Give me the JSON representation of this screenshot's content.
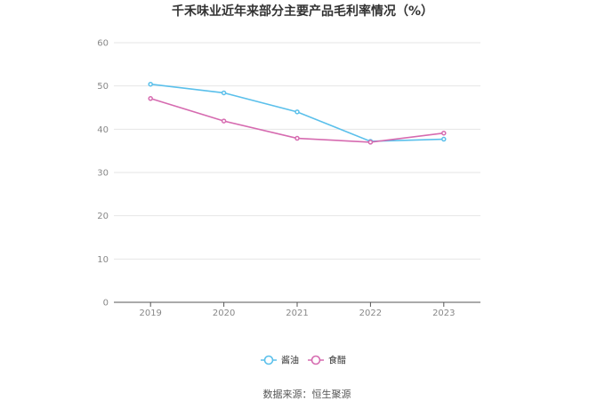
{
  "chart_data": {
    "type": "line",
    "title": "千禾味业近年来部分主要产品毛利率情况（%）",
    "categories": [
      "2019",
      "2020",
      "2021",
      "2022",
      "2023"
    ],
    "y_ticks": [
      "0",
      "10",
      "20",
      "30",
      "40",
      "50",
      "60"
    ],
    "ylim": [
      0,
      60
    ],
    "grid": true,
    "legend_position": "bottom",
    "series": [
      {
        "name": "酱油",
        "color": "#5bc0eb",
        "values": [
          50.4,
          48.4,
          44.0,
          37.2,
          37.7
        ]
      },
      {
        "name": "食醋",
        "color": "#d66bb0",
        "values": [
          47.1,
          41.9,
          37.9,
          37.0,
          39.1
        ]
      }
    ],
    "source": "数据来源：恒生聚源"
  }
}
